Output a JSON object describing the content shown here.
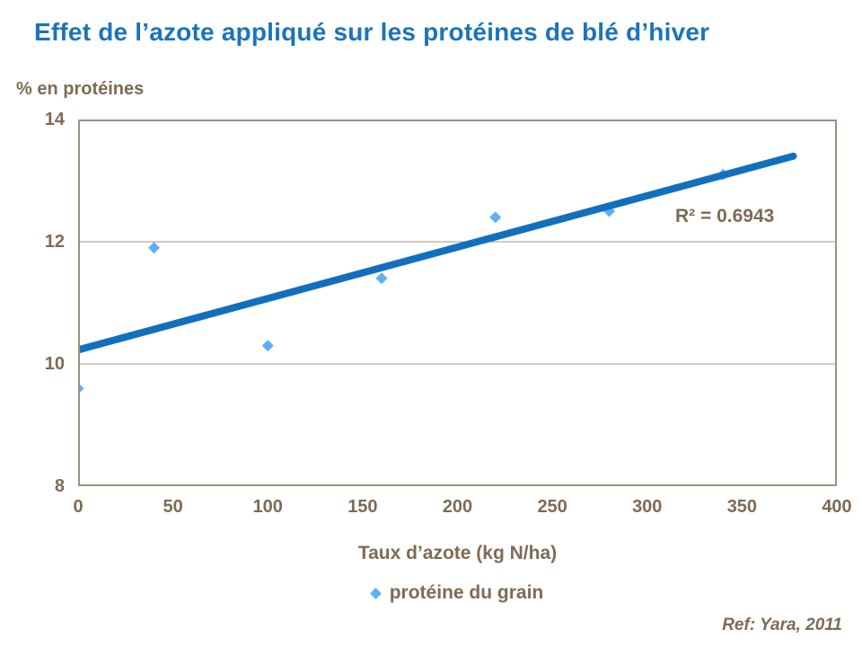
{
  "title": "Effet de l’azote appliqué sur les protéines de blé d’hiver",
  "footer": {
    "reference": "Ref: Yara, 2011"
  },
  "chart_data": {
    "type": "scatter",
    "title": "Effet de l’azote appliqué sur les protéines de blé d’hiver",
    "xlabel": "Taux d’azote (kg N/ha)",
    "ylabel": "% en protéines",
    "legend": [
      "protéine du grain"
    ],
    "legend_position": "bottom",
    "xlim": [
      0,
      400
    ],
    "ylim": [
      8,
      14
    ],
    "x_ticks": [
      0,
      50,
      100,
      150,
      200,
      250,
      300,
      350,
      400
    ],
    "y_ticks": [
      8,
      10,
      12,
      14
    ],
    "gridlines_y": [
      10,
      12
    ],
    "series": [
      {
        "name": "protéine du grain",
        "marker": "diamond",
        "points": [
          [
            0,
            9.6
          ],
          [
            40,
            11.9
          ],
          [
            100,
            10.3
          ],
          [
            160,
            11.4
          ],
          [
            220,
            12.4
          ],
          [
            280,
            12.5
          ],
          [
            340,
            13.1
          ]
        ]
      }
    ],
    "trendline": {
      "x1": 0,
      "y1": 10.23,
      "x2": 377,
      "y2": 13.4,
      "r_squared": 0.6943,
      "r_squared_label": "R² = 0.6943"
    },
    "colors": {
      "title_blue": "#1b74bb",
      "trendline_blue": "#1170be",
      "marker_blue": "#5fb0f2",
      "text_brown": "#7e6b53",
      "plot_border": "#9d9080",
      "gridline": "#a19684"
    }
  }
}
